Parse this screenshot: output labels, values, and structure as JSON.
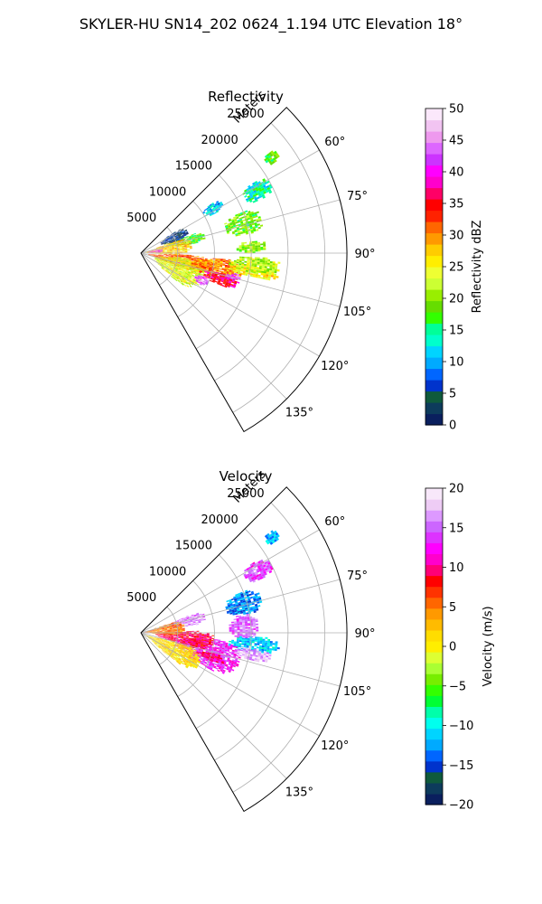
{
  "figure": {
    "suptitle": "SKYLER-HU  SN14_202  0624_1.194 UTC Elevation 18°"
  },
  "chart_data": [
    {
      "type": "heatmap",
      "projection": "polar-sector",
      "title": "Reflectivity",
      "range_label": "Meters",
      "range_ticks": [
        "5000",
        "10000",
        "15000",
        "20000",
        "25000"
      ],
      "range_max_m": 28000,
      "azimuth_range_deg": [
        45,
        150
      ],
      "azimuth_ticks": [
        "60°",
        "75°",
        "90°",
        "105°",
        "120°",
        "135°"
      ],
      "grid": true,
      "colorbar": {
        "label": "Reflectivity dBZ",
        "ticks": [
          "0",
          "5",
          "10",
          "15",
          "20",
          "25",
          "30",
          "35",
          "40",
          "45",
          "50"
        ],
        "vmin": 0,
        "vmax": 50,
        "colors": [
          "#0a1f5e",
          "#0d3b5c",
          "#0f5a3c",
          "#0033cc",
          "#0066ff",
          "#00aaff",
          "#00d4ff",
          "#00ffcc",
          "#00ff99",
          "#33ff00",
          "#66dd00",
          "#99ee00",
          "#ccff33",
          "#eeff33",
          "#ffee00",
          "#ffcc00",
          "#ff9900",
          "#ff6600",
          "#ff2200",
          "#ff0000",
          "#ff0066",
          "#ff00cc",
          "#ff00ff",
          "#cc33ff",
          "#dd66ff",
          "#ee99ee",
          "#f2c4f2",
          "#fbe8fb"
        ]
      },
      "echo_regions": [
        {
          "az": [
            52,
            56
          ],
          "r_km": [
            21,
            23
          ],
          "dbz": 18
        },
        {
          "az": [
            58,
            66
          ],
          "r_km": [
            16,
            20
          ],
          "dbz": 14
        },
        {
          "az": [
            55,
            62
          ],
          "r_km": [
            10,
            13
          ],
          "dbz": 11
        },
        {
          "az": [
            68,
            80
          ],
          "r_km": [
            12,
            17
          ],
          "dbz": 19
        },
        {
          "az": [
            84,
            90
          ],
          "r_km": [
            13,
            17
          ],
          "dbz": 20
        },
        {
          "az": [
            70,
            80
          ],
          "r_km": [
            4,
            9
          ],
          "dbz": 18
        },
        {
          "az": [
            58,
            72
          ],
          "r_km": [
            3,
            7
          ],
          "dbz": 4
        },
        {
          "az": [
            70,
            93
          ],
          "r_km": [
            0.5,
            7
          ],
          "dbz": 27
        },
        {
          "az": [
            92,
            110
          ],
          "r_km": [
            1,
            10
          ],
          "dbz": 32
        },
        {
          "az": [
            96,
            128
          ],
          "r_km": [
            2,
            9
          ],
          "dbz": 24
        },
        {
          "az": [
            94,
            108
          ],
          "r_km": [
            7,
            14
          ],
          "dbz": 30
        },
        {
          "az": [
            97,
            102
          ],
          "r_km": [
            12,
            19
          ],
          "dbz": 26
        },
        {
          "az": [
            92,
            100
          ],
          "r_km": [
            12,
            19
          ],
          "dbz": 22
        },
        {
          "az": [
            104,
            112
          ],
          "r_km": [
            9,
            14
          ],
          "dbz": 36
        },
        {
          "az": [
            78,
            88
          ],
          "r_km": [
            1,
            3
          ],
          "dbz": 42
        },
        {
          "az": [
            110,
            118
          ],
          "r_km": [
            8,
            10
          ],
          "dbz": 44
        },
        {
          "az": [
            102,
            106
          ],
          "r_km": [
            12,
            14
          ],
          "dbz": 43
        }
      ]
    },
    {
      "type": "heatmap",
      "projection": "polar-sector",
      "title": "Velocity",
      "range_label": "Meters",
      "range_ticks": [
        "5000",
        "10000",
        "15000",
        "20000",
        "25000"
      ],
      "range_max_m": 28000,
      "azimuth_range_deg": [
        45,
        150
      ],
      "azimuth_ticks": [
        "60°",
        "75°",
        "90°",
        "105°",
        "120°",
        "135°"
      ],
      "grid": true,
      "colorbar": {
        "label": "Velocity (m/s)",
        "ticks": [
          "−20",
          "−15",
          "−10",
          "−5",
          "0",
          "5",
          "10",
          "15",
          "20"
        ],
        "vmin": -20,
        "vmax": 20,
        "colors": [
          "#0a1f5e",
          "#0d3b5c",
          "#0f5a3c",
          "#0033cc",
          "#0066ff",
          "#00aaff",
          "#00d4ff",
          "#00ffee",
          "#00ffaa",
          "#00ff33",
          "#33ff00",
          "#77ee00",
          "#aaff33",
          "#ddff33",
          "#ffee00",
          "#ffdd00",
          "#ffbb00",
          "#ff9900",
          "#ff6600",
          "#ff3300",
          "#ff0000",
          "#ff0077",
          "#ff00cc",
          "#ff00ff",
          "#dd33ff",
          "#cc66ff",
          "#dd99ff",
          "#eeccf5",
          "#f8e8fa"
        ]
      },
      "echo_regions": [
        {
          "az": [
            52,
            56
          ],
          "r_km": [
            21,
            23
          ],
          "vel": -12
        },
        {
          "az": [
            58,
            66
          ],
          "r_km": [
            16,
            20
          ],
          "vel": 14
        },
        {
          "az": [
            68,
            80
          ],
          "r_km": [
            12,
            17
          ],
          "vel": -13
        },
        {
          "az": [
            80,
            94
          ],
          "r_km": [
            12,
            16
          ],
          "vel": 15
        },
        {
          "az": [
            92,
            100
          ],
          "r_km": [
            12,
            19
          ],
          "vel": -11
        },
        {
          "az": [
            70,
            82
          ],
          "r_km": [
            4,
            9
          ],
          "vel": 16
        },
        {
          "az": [
            95,
            118
          ],
          "r_km": [
            5,
            14
          ],
          "vel": 13
        },
        {
          "az": [
            88,
            106
          ],
          "r_km": [
            2,
            10
          ],
          "vel": 9
        },
        {
          "az": [
            72,
            95
          ],
          "r_km": [
            0.5,
            6
          ],
          "vel": 5
        },
        {
          "az": [
            105,
            130
          ],
          "r_km": [
            0.5,
            9
          ],
          "vel": 1
        },
        {
          "az": [
            98,
            104
          ],
          "r_km": [
            13,
            18
          ],
          "vel": 17
        },
        {
          "az": [
            106,
            112
          ],
          "r_km": [
            8,
            12
          ],
          "vel": 10
        }
      ]
    }
  ]
}
